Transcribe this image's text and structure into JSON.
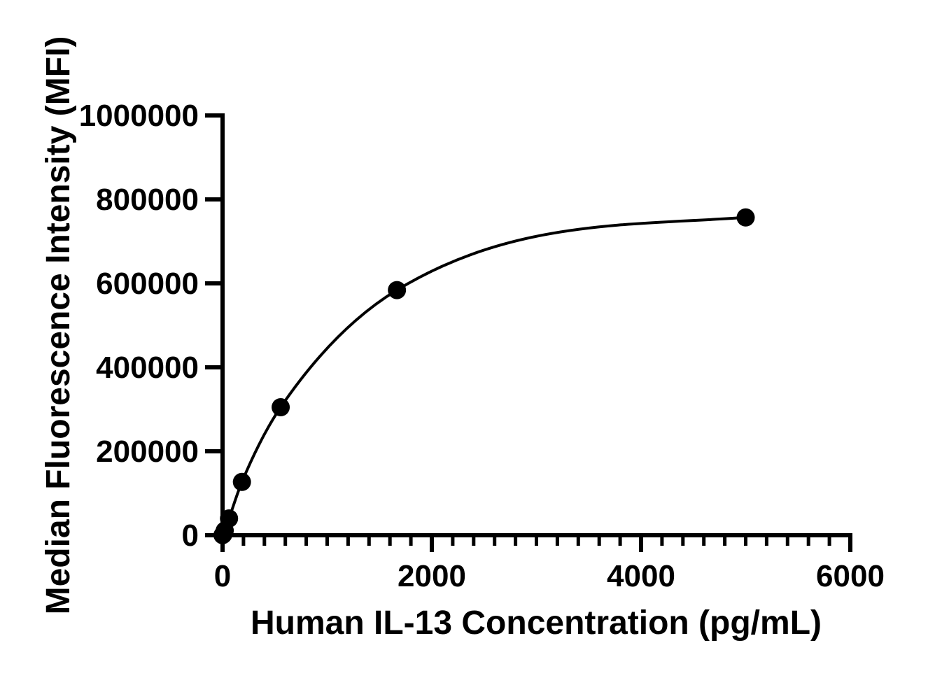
{
  "chart_data": {
    "type": "scatter",
    "subtype": "standard_curve_with_fit",
    "title": "",
    "xlabel": "Human IL-13 Concentration（pg/mL）",
    "ylabel": "Median Fluorescence Intensity（MFI）",
    "x": [
      0,
      6.86,
      20.58,
      61.73,
      185.19,
      555.56,
      1666.67,
      5000
    ],
    "y": [
      300,
      1800,
      11000,
      40000,
      127000,
      305000,
      584000,
      757000
    ],
    "xlim": [
      0,
      6000
    ],
    "ylim": [
      0,
      1000000
    ],
    "x_major_ticks": [
      0,
      2000,
      4000,
      6000
    ],
    "x_minor_tick_step": 200,
    "y_ticks": [
      0,
      200000,
      400000,
      600000,
      800000,
      1000000
    ],
    "grid": false,
    "legend": false,
    "marker": {
      "shape": "circle",
      "color": "#000000",
      "radius_px": 13
    },
    "line": {
      "color": "#000000",
      "style": "solid",
      "kind": "smooth saturation fit through points"
    },
    "axis_color": "#000000",
    "background_color": "#ffffff"
  }
}
